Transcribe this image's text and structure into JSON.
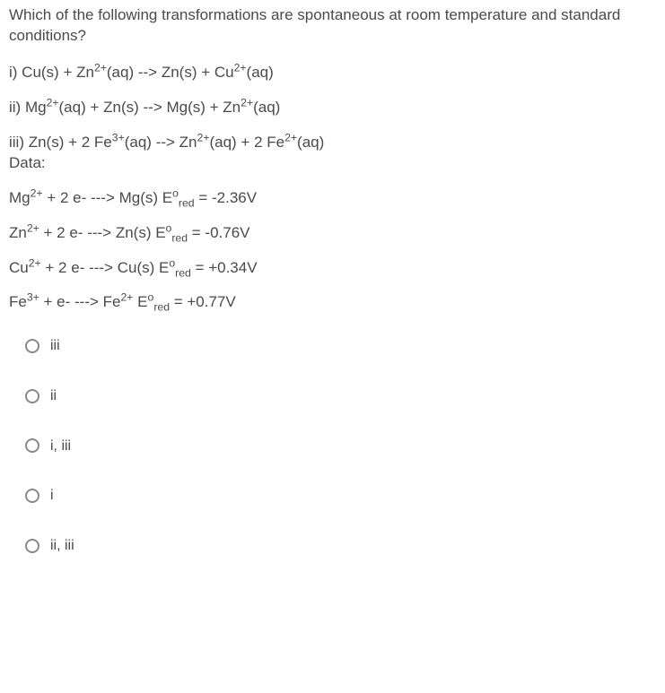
{
  "colors": {
    "text": "#4a4a4a",
    "background": "#ffffff",
    "radio_border": "#888888"
  },
  "typography": {
    "body_fontsize": 17,
    "option_fontsize": 16,
    "font_family": "Helvetica Neue, Arial, sans-serif"
  },
  "question": {
    "prompt": "Which of the following transformations are spontaneous at room temperature and standard conditions?",
    "reactions": {
      "i": "i) Cu(s) + Zn²⁺(aq) --> Zn(s) + Cu²⁺(aq)",
      "ii": "ii) Mg²⁺(aq) + Zn(s) --> Mg(s) + Zn²⁺(aq)",
      "iii": "iii) Zn(s) + 2 Fe³⁺(aq) --> Zn²⁺(aq) + 2 Fe²⁺(aq)"
    },
    "data_label": "Data:",
    "data_lines": {
      "mg": "Mg²⁺ + 2 e- ---> Mg(s) Eᵒ_red = -2.36V",
      "zn": "Zn²⁺ + 2 e- ---> Zn(s) Eᵒ_red = -0.76V",
      "cu": "Cu²⁺ + 2 e- ---> Cu(s) Eᵒ_red = +0.34V",
      "fe": "Fe³⁺ + e- ---> Fe²⁺ Eᵒ_red = +0.77V"
    }
  },
  "options": [
    {
      "value": "iii",
      "label": "iii"
    },
    {
      "value": "ii",
      "label": "ii"
    },
    {
      "value": "i_iii",
      "label": "i, iii"
    },
    {
      "value": "i",
      "label": "i"
    },
    {
      "value": "ii_iii",
      "label": "ii, iii"
    }
  ]
}
